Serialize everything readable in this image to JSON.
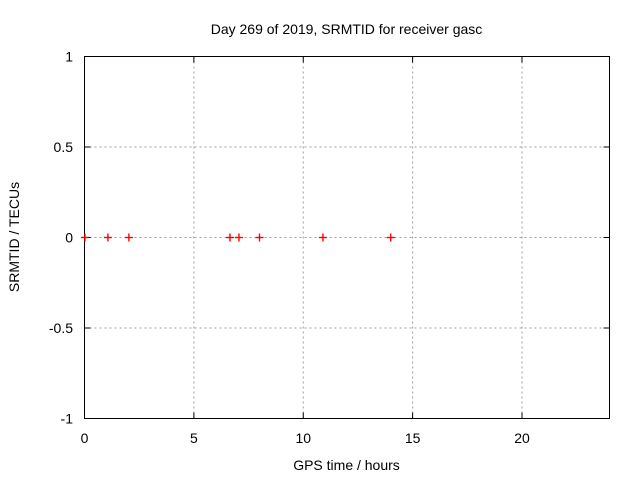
{
  "chart_data": {
    "type": "scatter",
    "title": "Day 269 of 2019, SRMTID for receiver gasc",
    "xlabel": "GPS time / hours",
    "ylabel": "SRMTID / TECUs",
    "xlim": [
      0,
      24
    ],
    "ylim": [
      -1,
      1
    ],
    "xticks": [
      0,
      5,
      10,
      15,
      20
    ],
    "xtick_labels": [
      "0",
      "5",
      "10",
      "15",
      "20"
    ],
    "yticks": [
      1,
      0.5,
      0,
      -0.5,
      -1
    ],
    "ytick_labels": [
      "1",
      "0.5",
      "0",
      "-0.5",
      "-1"
    ],
    "grid": true,
    "legend_position": "none",
    "series": [
      {
        "name": "SRMTID",
        "marker": "plus",
        "color": "#ff0000",
        "x": [
          0.02,
          1.07,
          2.03,
          6.65,
          7.06,
          8.0,
          10.9,
          14.0
        ],
        "y": [
          0,
          0,
          0,
          0,
          0,
          0,
          0,
          0
        ]
      }
    ],
    "colors": {
      "marker": "#ff0000",
      "grid": "#a0a0a0",
      "axis": "#000000",
      "background": "#ffffff",
      "text": "#000000"
    }
  }
}
